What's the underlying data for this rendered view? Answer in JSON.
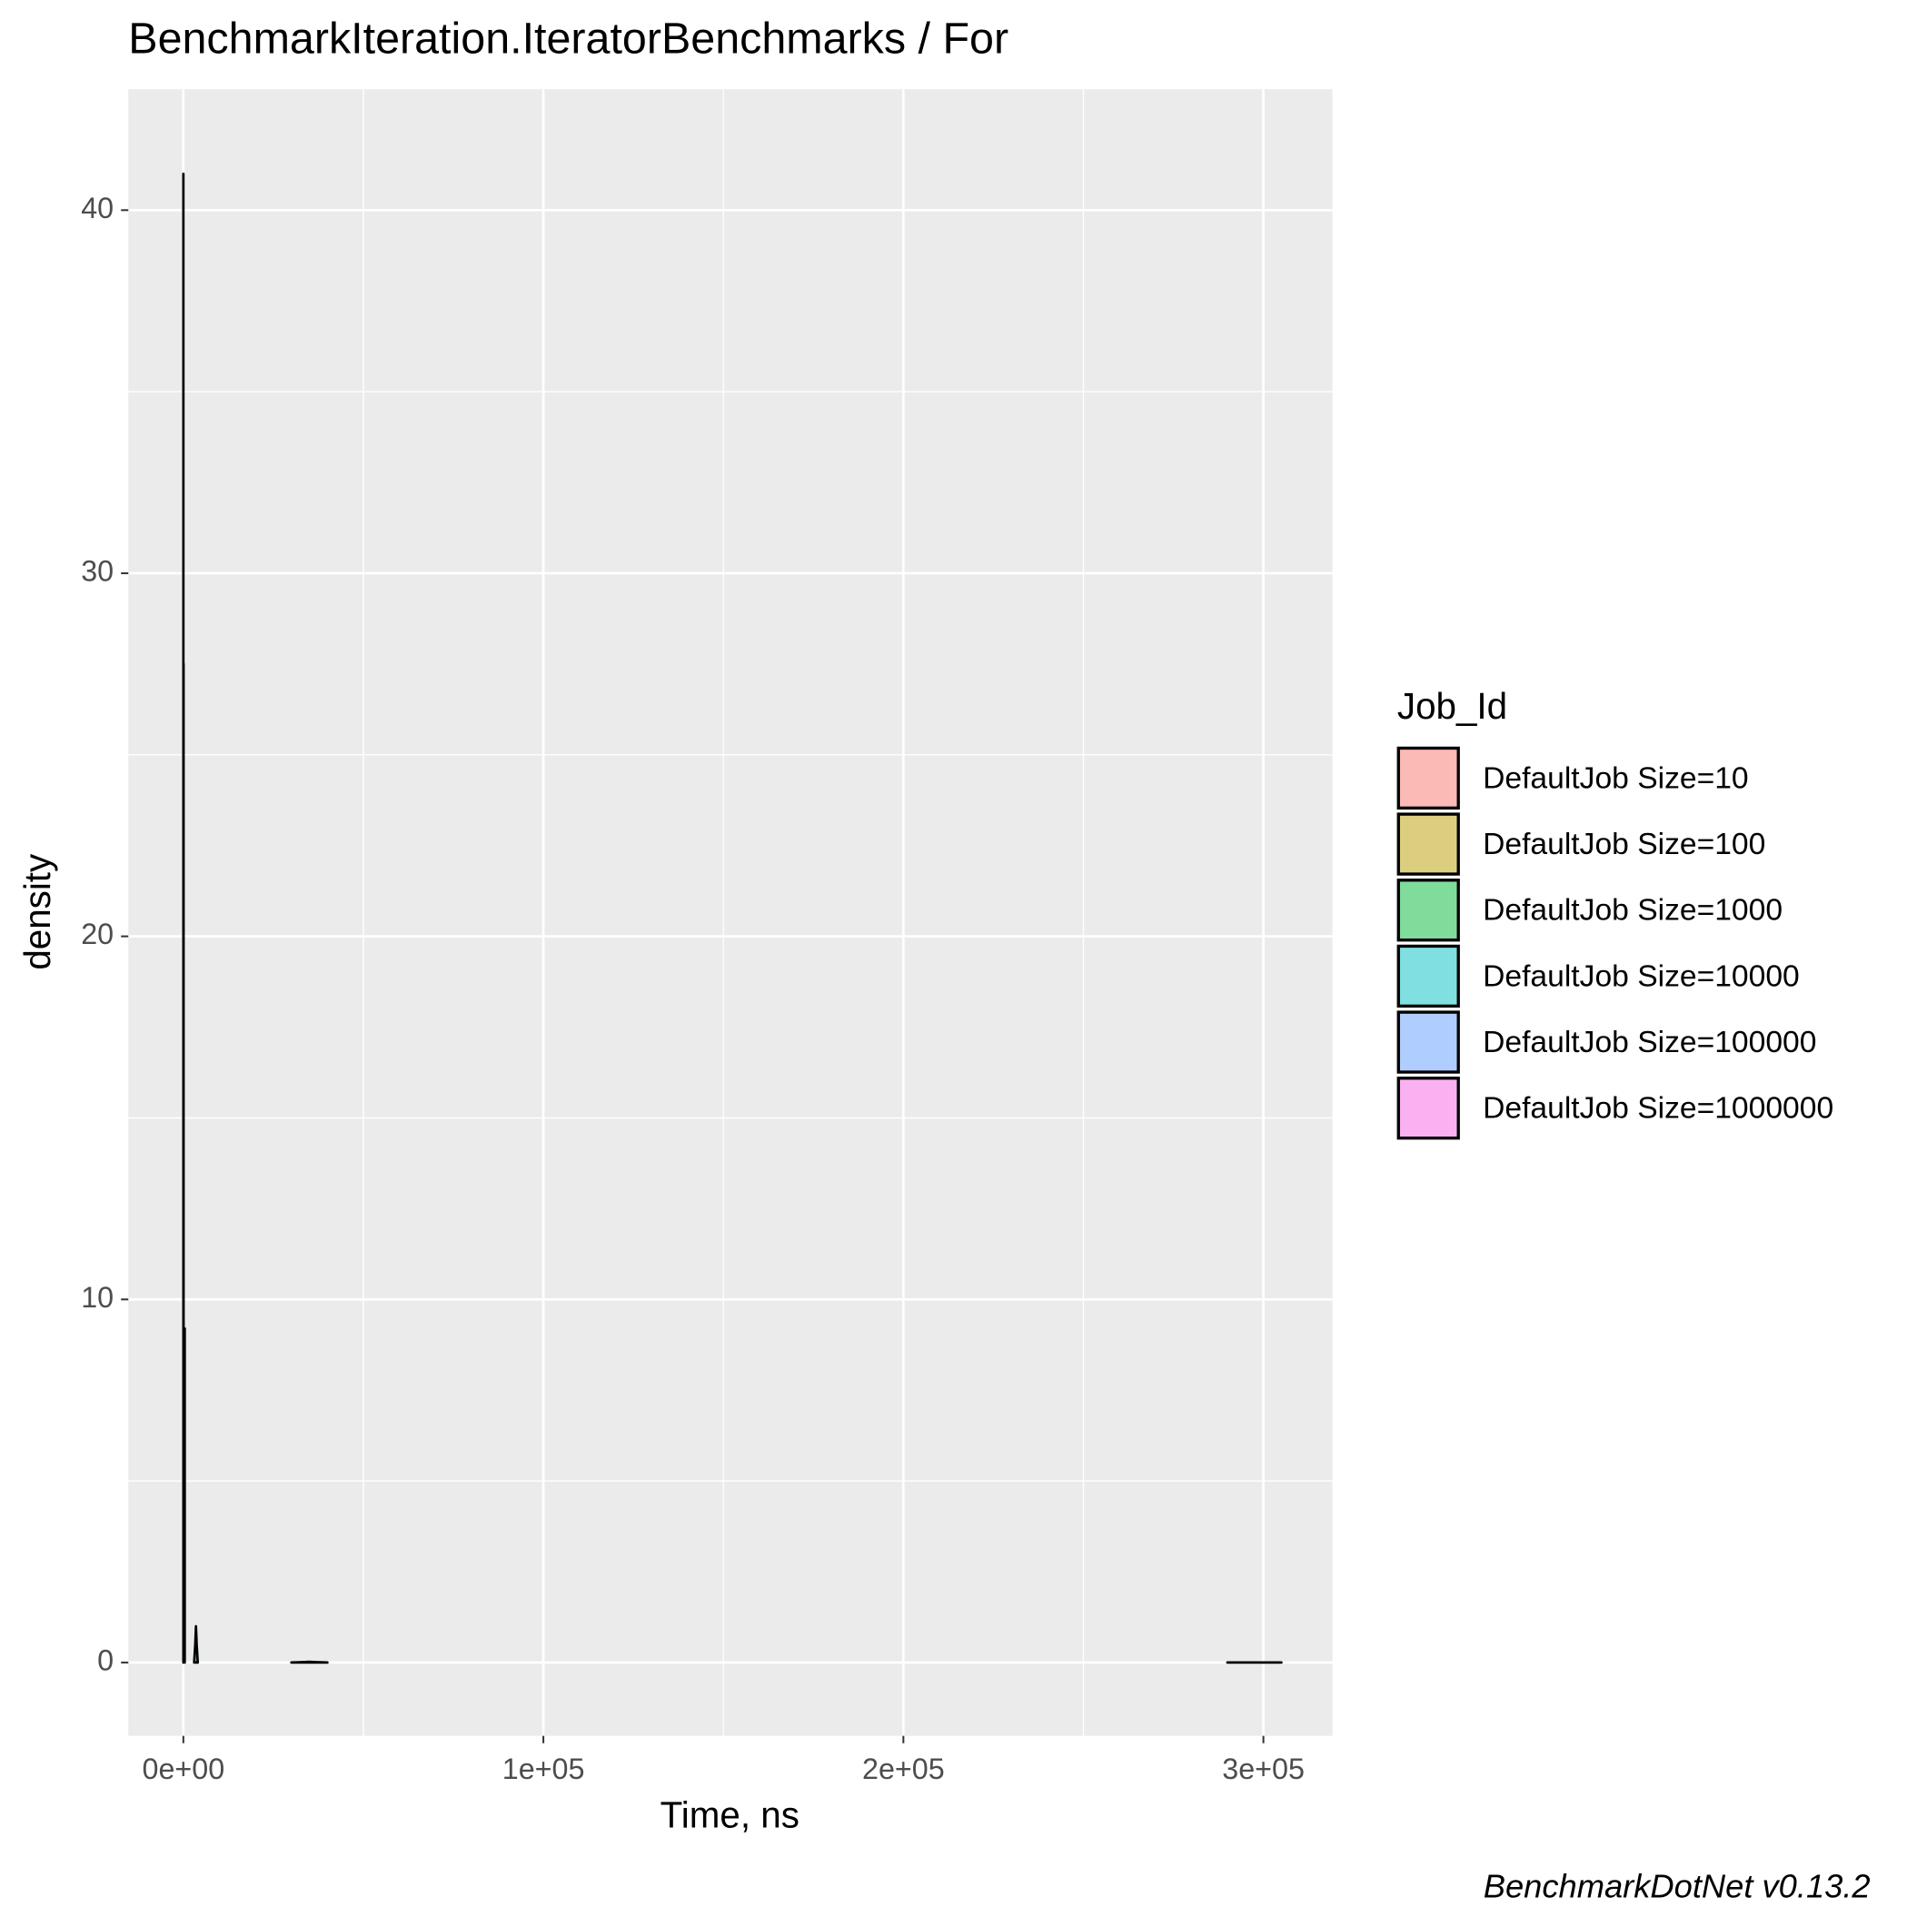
{
  "chart_data": {
    "type": "density",
    "title": "BenchmarkIteration.IteratorBenchmarks / For",
    "x_label": "Time, ns",
    "y_label": "density",
    "legend_title": "Job_Id",
    "caption": "BenchmarkDotNet v0.13.2",
    "legend_position": "right",
    "grid": true,
    "xlim": [
      -15280,
      319185
    ],
    "ylim": [
      -2.02,
      43.33
    ],
    "xticks": [
      {
        "value": 0,
        "label": "0e+00"
      },
      {
        "value": 100000,
        "label": "1e+05"
      },
      {
        "value": 200000,
        "label": "2e+05"
      },
      {
        "value": 300000,
        "label": "3e+05"
      }
    ],
    "yticks": [
      0,
      10,
      20,
      30,
      40
    ],
    "series": [
      {
        "name": "DefaultJob Size=10",
        "color": "#F8766D",
        "x": [
          5,
          5.02,
          5.04,
          5.06,
          5.08
        ],
        "values": [
          0,
          20,
          41,
          20,
          0
        ]
      },
      {
        "name": "DefaultJob Size=100",
        "color": "#B79F00",
        "x": [
          40,
          40.05,
          40.1,
          40.15,
          40.2
        ],
        "values": [
          0,
          14,
          27.5,
          14,
          0
        ]
      },
      {
        "name": "DefaultJob Size=1000",
        "color": "#00BA38",
        "x": [
          380,
          380.1,
          380.2,
          380.3,
          380.4
        ],
        "values": [
          0,
          5,
          9.2,
          5,
          0
        ]
      },
      {
        "name": "DefaultJob Size=10000",
        "color": "#00BFC4",
        "x": [
          3000,
          3300,
          3500,
          3700,
          4000
        ],
        "values": [
          0,
          0.5,
          1,
          0.5,
          0
        ]
      },
      {
        "name": "DefaultJob Size=100000",
        "color": "#619CFF",
        "x": [
          30000,
          33000,
          35000,
          37000,
          40000
        ],
        "values": [
          0,
          0.01,
          0.02,
          0.01,
          0
        ]
      },
      {
        "name": "DefaultJob Size=1000000",
        "color": "#F564E3",
        "x": [
          290000,
          295000,
          298000,
          301000,
          305000
        ],
        "values": [
          0,
          0.0001,
          0.0003,
          0.0001,
          0
        ]
      }
    ]
  }
}
